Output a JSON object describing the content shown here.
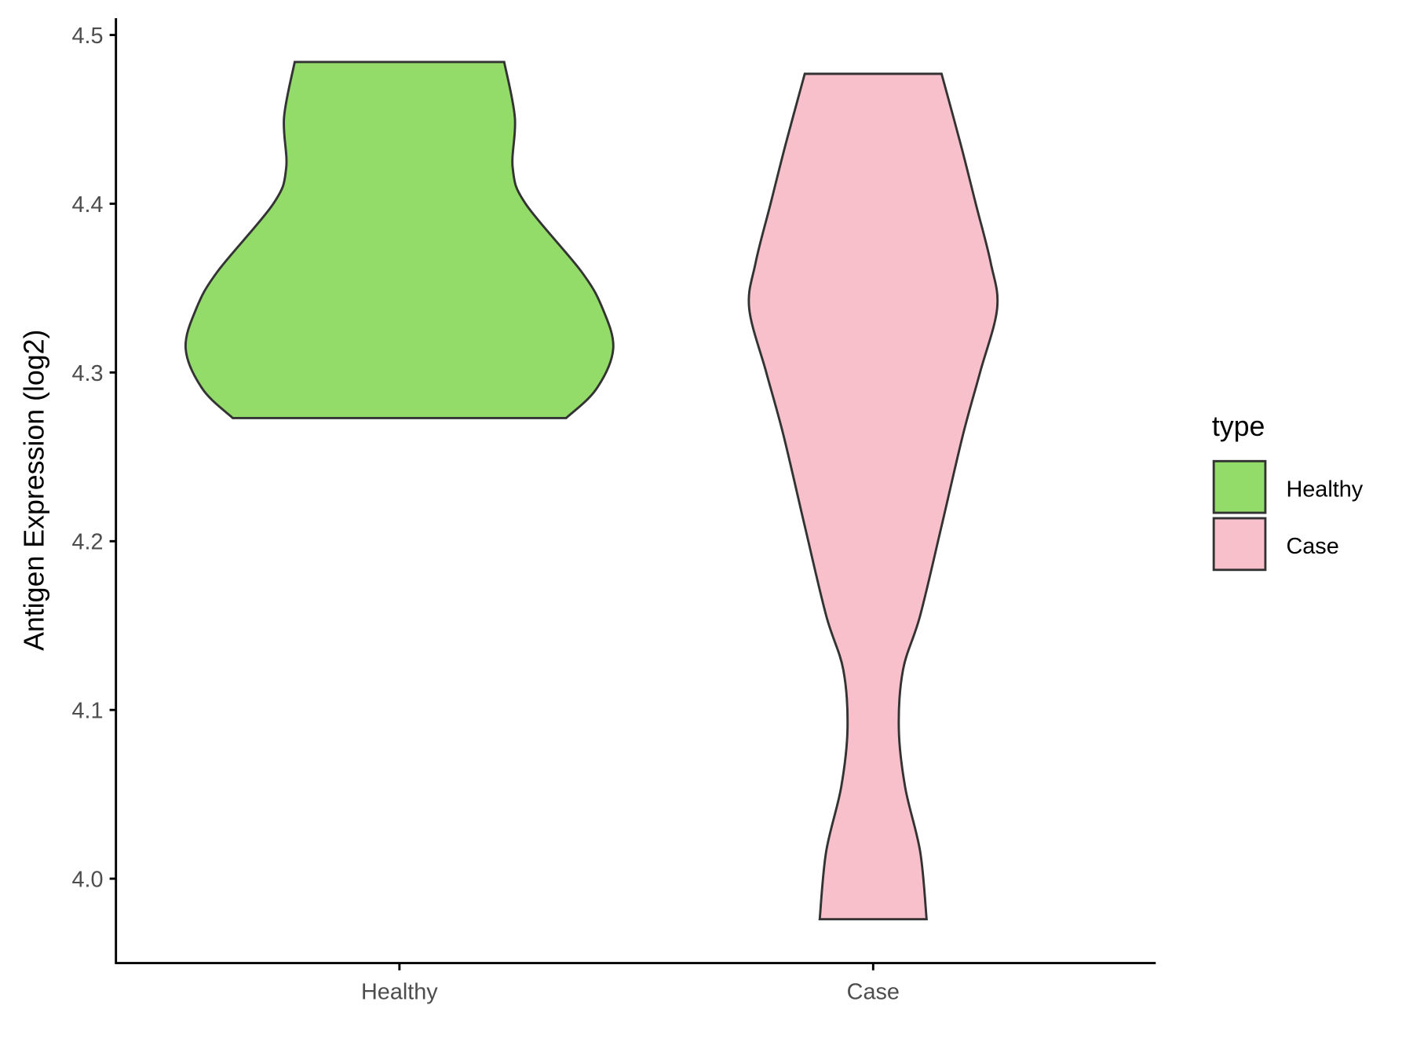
{
  "chart_data": {
    "type": "violin",
    "title": "",
    "xlabel": "",
    "ylabel": "Antigen Expression (log2)",
    "ylim": [
      3.95,
      4.51
    ],
    "yticks": [
      "4.0",
      "4.1",
      "4.2",
      "4.3",
      "4.4",
      "4.5"
    ],
    "ytick_values": [
      4.0,
      4.1,
      4.2,
      4.3,
      4.4,
      4.5
    ],
    "categories": [
      "Healthy",
      "Case"
    ],
    "grid": false,
    "legend": {
      "title": "type",
      "position": "right",
      "entries": [
        "Healthy",
        "Case"
      ]
    },
    "series": [
      {
        "name": "Healthy",
        "color": "#93DC6A",
        "min": 4.273,
        "max": 4.484,
        "relative_density": [
          [
            4.273,
            0.78
          ],
          [
            4.29,
            0.92
          ],
          [
            4.314,
            1.0
          ],
          [
            4.338,
            0.95
          ],
          [
            4.36,
            0.85
          ],
          [
            4.4,
            0.59
          ],
          [
            4.421,
            0.53
          ],
          [
            4.451,
            0.54
          ],
          [
            4.484,
            0.49
          ]
        ]
      },
      {
        "name": "Case",
        "color": "#F7C0CB",
        "min": 3.976,
        "max": 4.477,
        "relative_density": [
          [
            3.976,
            0.25
          ],
          [
            4.016,
            0.22
          ],
          [
            4.054,
            0.15
          ],
          [
            4.089,
            0.12
          ],
          [
            4.124,
            0.14
          ],
          [
            4.156,
            0.22
          ],
          [
            4.209,
            0.32
          ],
          [
            4.263,
            0.42
          ],
          [
            4.3,
            0.5
          ],
          [
            4.338,
            0.58
          ],
          [
            4.365,
            0.55
          ],
          [
            4.4,
            0.48
          ],
          [
            4.435,
            0.41
          ],
          [
            4.477,
            0.32
          ]
        ]
      }
    ]
  }
}
